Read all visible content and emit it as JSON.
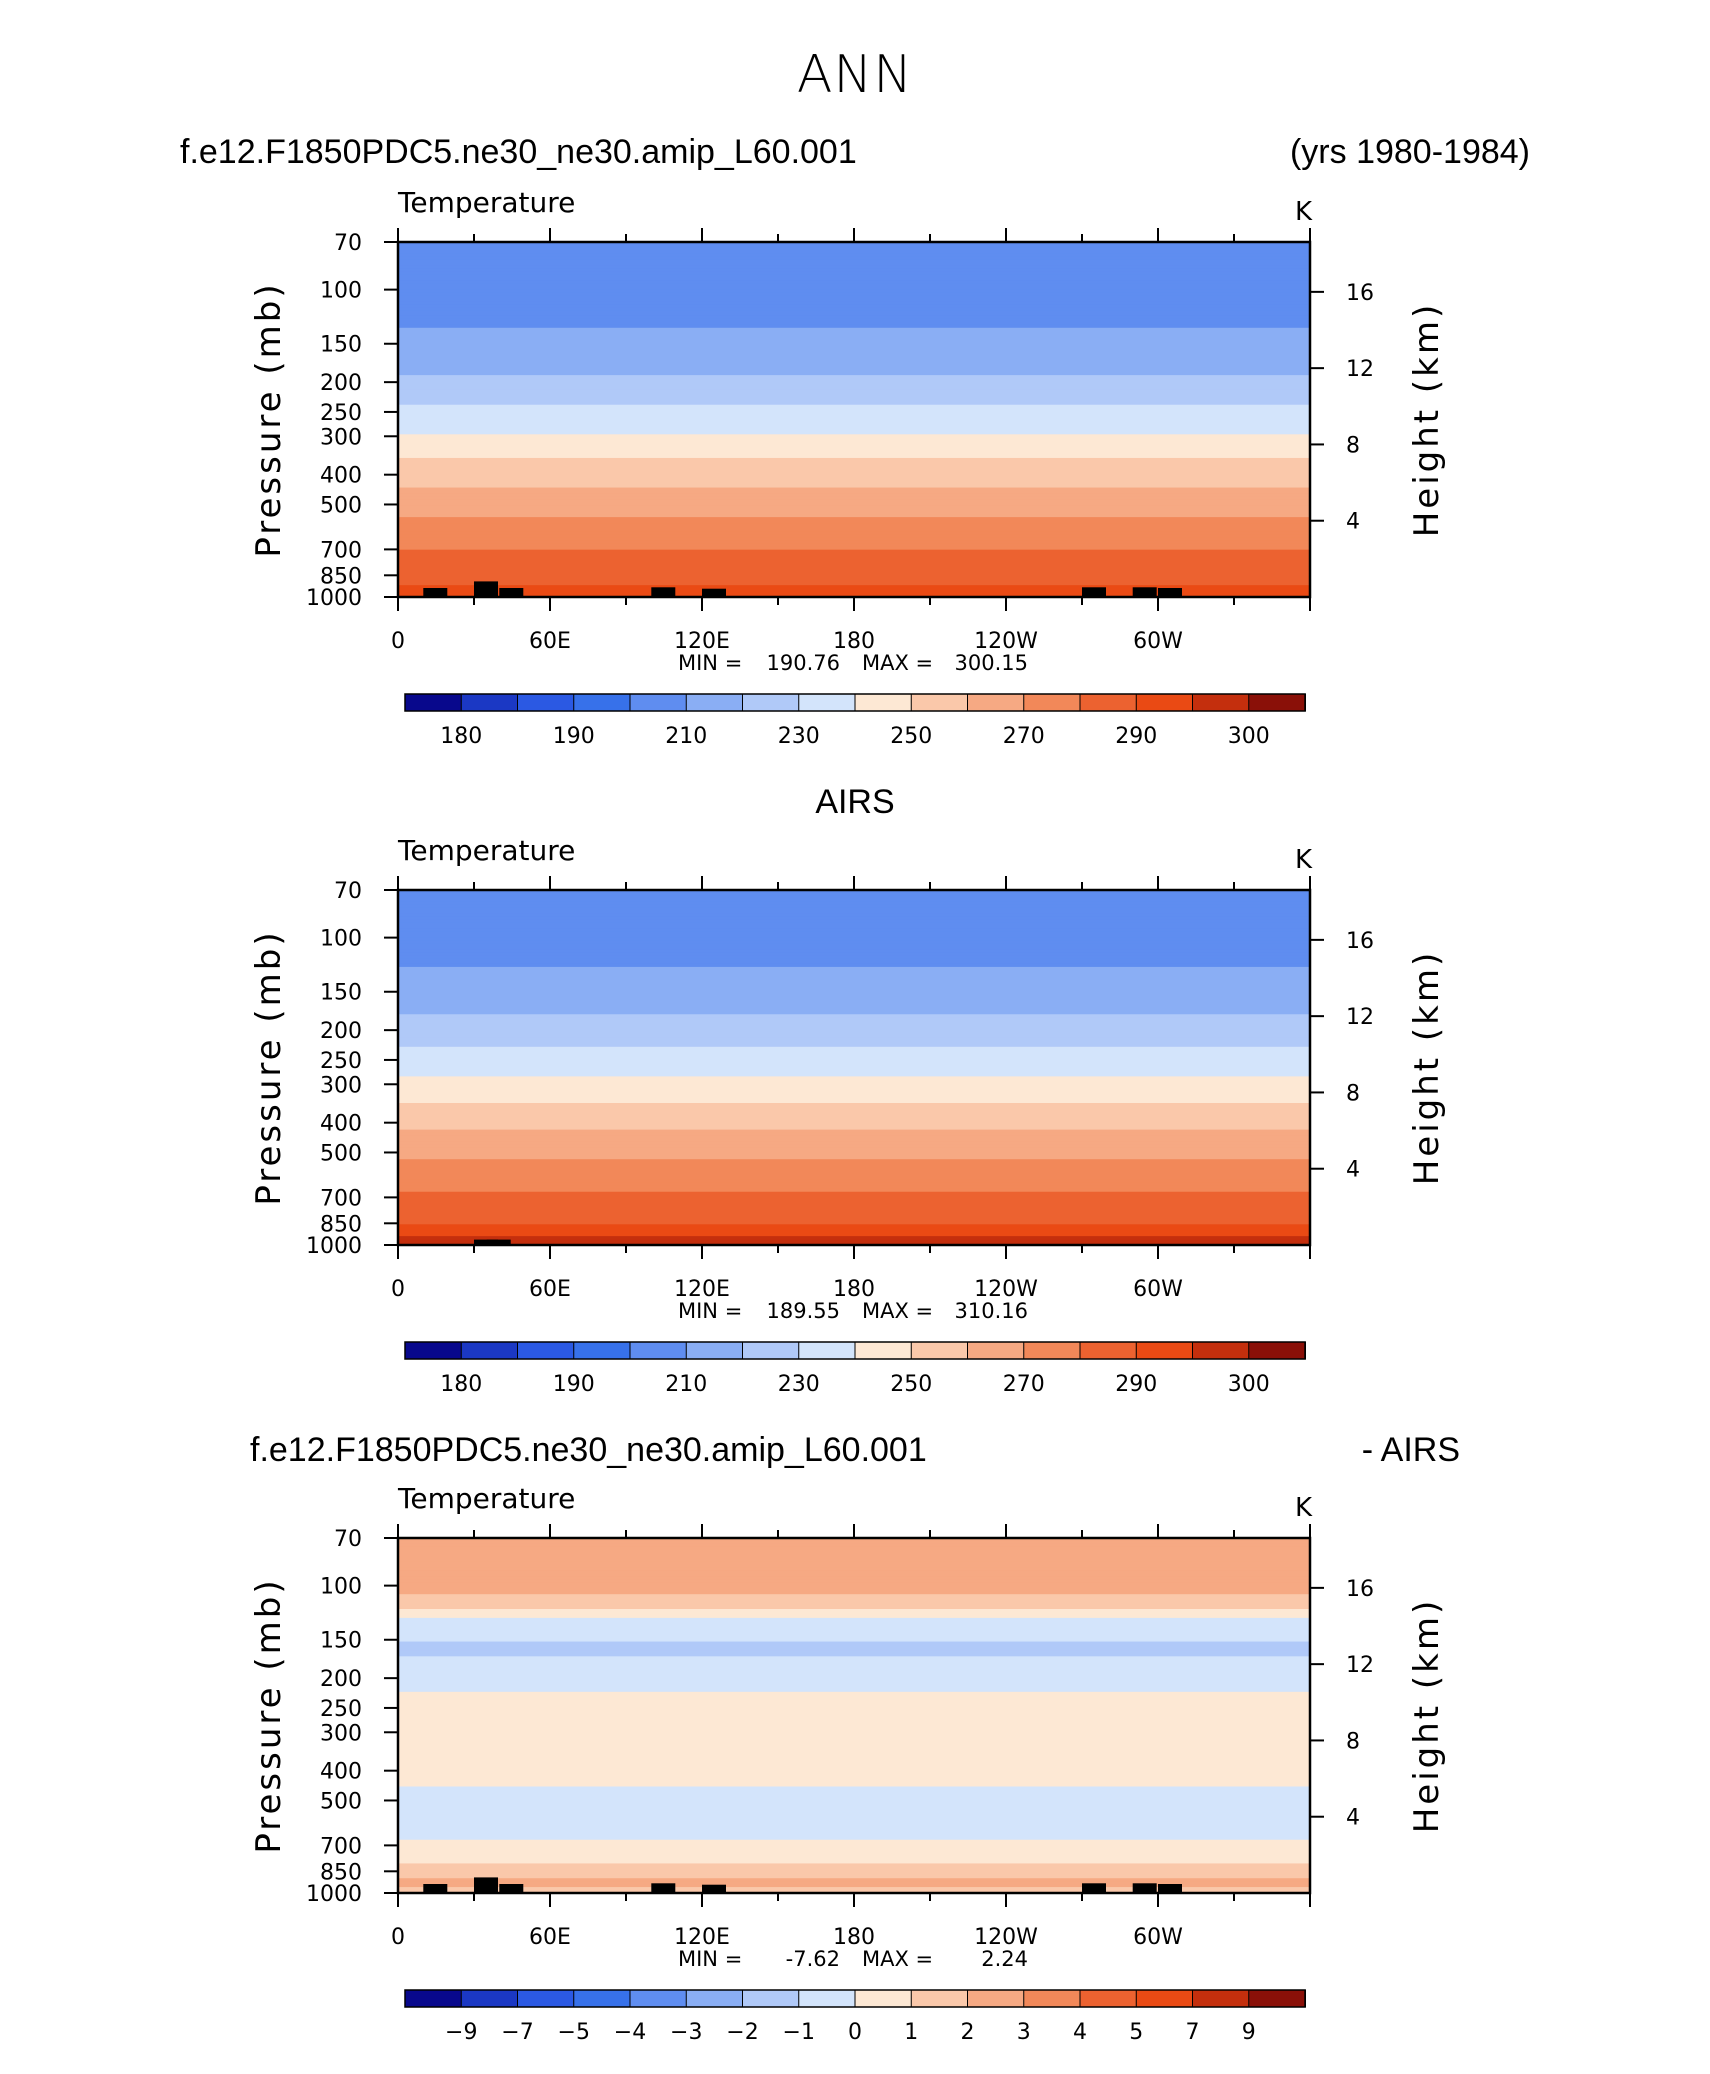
{
  "figure_title": "ANN",
  "top_left_title": "f.e12.F1850PDC5.ne30_ne30.amip_L60.001",
  "top_right_title": "(yrs 1980-1984)",
  "middle_title": "AIRS",
  "bottom_left_title": "f.e12.F1850PDC5.ne30_ne30.amip_L60.001",
  "bottom_right_title": "- AIRS",
  "chart_data": [
    {
      "type": "heatmap",
      "variable_label": "Temperature",
      "units": "K",
      "ylabel": "Pressure (mb)",
      "y2label": "Height (km)",
      "xticks": [
        "0",
        "60E",
        "120E",
        "180",
        "120W",
        "60W"
      ],
      "xtick_values": [
        0,
        60,
        120,
        180,
        240,
        300
      ],
      "xlim": [
        0,
        360
      ],
      "yticks": [
        "70",
        "100",
        "150",
        "200",
        "250",
        "300",
        "400",
        "500",
        "700",
        "850",
        "1000"
      ],
      "ytick_values": [
        70,
        100,
        150,
        200,
        250,
        300,
        400,
        500,
        700,
        850,
        1000
      ],
      "y2ticks": [
        "16",
        "12",
        "8",
        "4"
      ],
      "y2tick_values": [
        16,
        12,
        8,
        4
      ],
      "ylim": [
        70,
        1000
      ],
      "min_label": "MIN =",
      "min_value": "190.76",
      "max_label": "MAX =",
      "max_value": "300.15",
      "levels": [
        180,
        185,
        190,
        200,
        210,
        220,
        230,
        240,
        250,
        260,
        270,
        280,
        290,
        295,
        300
      ],
      "colorbar_labels": [
        "180",
        "190",
        "210",
        "230",
        "250",
        "270",
        "290",
        "300"
      ],
      "colors": [
        "#08088c",
        "#1b38c4",
        "#2b59e3",
        "#3771ea",
        "#5f8df0",
        "#8aaef4",
        "#b0c9f8",
        "#d3e4fb",
        "#fde8d4",
        "#fac8aa",
        "#f6a983",
        "#f28859",
        "#ec6230",
        "#ea4a14",
        "#c42f0d",
        "#8a1008"
      ],
      "profile": [
        {
          "p": 70,
          "t": 205
        },
        {
          "p": 90,
          "t": 205
        },
        {
          "p": 100,
          "t": 205
        },
        {
          "p": 120,
          "t": 208
        },
        {
          "p": 150,
          "t": 212
        },
        {
          "p": 200,
          "t": 222
        },
        {
          "p": 250,
          "t": 232
        },
        {
          "p": 300,
          "t": 241
        },
        {
          "p": 350,
          "t": 249
        },
        {
          "p": 400,
          "t": 256
        },
        {
          "p": 500,
          "t": 266
        },
        {
          "p": 600,
          "t": 274
        },
        {
          "p": 700,
          "t": 280
        },
        {
          "p": 850,
          "t": 287
        },
        {
          "p": 925,
          "t": 290
        },
        {
          "p": 1000,
          "t": 292
        }
      ],
      "terrain": [
        [
          10,
          935
        ],
        [
          30,
          890
        ],
        [
          40,
          935
        ],
        [
          100,
          930
        ],
        [
          120,
          940
        ],
        [
          270,
          930
        ],
        [
          290,
          930
        ],
        [
          300,
          935
        ]
      ]
    },
    {
      "type": "heatmap",
      "variable_label": "Temperature",
      "units": "K",
      "ylabel": "Pressure (mb)",
      "y2label": "Height (km)",
      "xticks": [
        "0",
        "60E",
        "120E",
        "180",
        "120W",
        "60W"
      ],
      "xtick_values": [
        0,
        60,
        120,
        180,
        240,
        300
      ],
      "xlim": [
        0,
        360
      ],
      "yticks": [
        "70",
        "100",
        "150",
        "200",
        "250",
        "300",
        "400",
        "500",
        "700",
        "850",
        "1000"
      ],
      "ytick_values": [
        70,
        100,
        150,
        200,
        250,
        300,
        400,
        500,
        700,
        850,
        1000
      ],
      "y2ticks": [
        "16",
        "12",
        "8",
        "4"
      ],
      "y2tick_values": [
        16,
        12,
        8,
        4
      ],
      "ylim": [
        70,
        1000
      ],
      "min_label": "MIN =",
      "min_value": "189.55",
      "max_label": "MAX =",
      "max_value": "310.16",
      "levels": [
        180,
        185,
        190,
        200,
        210,
        220,
        230,
        240,
        250,
        260,
        270,
        280,
        290,
        295,
        300
      ],
      "colorbar_labels": [
        "180",
        "190",
        "210",
        "230",
        "250",
        "270",
        "290",
        "300"
      ],
      "colors": [
        "#08088c",
        "#1b38c4",
        "#2b59e3",
        "#3771ea",
        "#5f8df0",
        "#8aaef4",
        "#b0c9f8",
        "#d3e4fb",
        "#fde8d4",
        "#fac8aa",
        "#f6a983",
        "#f28859",
        "#ec6230",
        "#ea4a14",
        "#c42f0d",
        "#8a1008"
      ],
      "profile": [
        {
          "p": 70,
          "t": 205
        },
        {
          "p": 90,
          "t": 205
        },
        {
          "p": 100,
          "t": 205
        },
        {
          "p": 120,
          "t": 209
        },
        {
          "p": 150,
          "t": 214
        },
        {
          "p": 200,
          "t": 224
        },
        {
          "p": 250,
          "t": 234
        },
        {
          "p": 300,
          "t": 243
        },
        {
          "p": 350,
          "t": 251
        },
        {
          "p": 400,
          "t": 258
        },
        {
          "p": 500,
          "t": 268
        },
        {
          "p": 600,
          "t": 276
        },
        {
          "p": 700,
          "t": 282
        },
        {
          "p": 850,
          "t": 289
        },
        {
          "p": 925,
          "t": 294
        },
        {
          "p": 1000,
          "t": 298
        }
      ],
      "terrain": [
        [
          30,
          960
        ],
        [
          35,
          960
        ]
      ]
    },
    {
      "type": "heatmap",
      "variable_label": "Temperature",
      "units": "K",
      "ylabel": "Pressure (mb)",
      "y2label": "Height (km)",
      "xticks": [
        "0",
        "60E",
        "120E",
        "180",
        "120W",
        "60W"
      ],
      "xtick_values": [
        0,
        60,
        120,
        180,
        240,
        300
      ],
      "xlim": [
        0,
        360
      ],
      "yticks": [
        "70",
        "100",
        "150",
        "200",
        "250",
        "300",
        "400",
        "500",
        "700",
        "850",
        "1000"
      ],
      "ytick_values": [
        70,
        100,
        150,
        200,
        250,
        300,
        400,
        500,
        700,
        850,
        1000
      ],
      "y2ticks": [
        "16",
        "12",
        "8",
        "4"
      ],
      "y2tick_values": [
        16,
        12,
        8,
        4
      ],
      "ylim": [
        70,
        1000
      ],
      "min_label": "MIN =",
      "min_value": "-7.62",
      "max_label": "MAX =",
      "max_value": "2.24",
      "levels": [
        -9,
        -8,
        -7,
        -6,
        -5,
        -4,
        -3,
        -2,
        -1,
        0,
        1,
        2,
        3,
        4,
        5,
        7,
        9
      ],
      "colorbar_labels": [
        "-9",
        "-7",
        "-5",
        "-4",
        "-3",
        "-2",
        "-1",
        "0",
        "1",
        "2",
        "3",
        "4",
        "5",
        "7",
        "9"
      ],
      "colors": [
        "#08088c",
        "#1b38c4",
        "#2b59e3",
        "#3771ea",
        "#5f8df0",
        "#8aaef4",
        "#b0c9f8",
        "#d3e4fb",
        "#fde8d4",
        "#fac8aa",
        "#f6a983",
        "#f28859",
        "#ec6230",
        "#ea4a14",
        "#c42f0d",
        "#8a1008"
      ],
      "profile": [
        {
          "p": 70,
          "t": 0.5
        },
        {
          "p": 100,
          "t": 0.5
        },
        {
          "p": 115,
          "t": -0.5
        },
        {
          "p": 130,
          "t": -2.5
        },
        {
          "p": 160,
          "t": -3.2
        },
        {
          "p": 200,
          "t": -2.5
        },
        {
          "p": 250,
          "t": -1.5
        },
        {
          "p": 300,
          "t": -1.6
        },
        {
          "p": 400,
          "t": -1.5
        },
        {
          "p": 500,
          "t": -2.4
        },
        {
          "p": 650,
          "t": -2.2
        },
        {
          "p": 750,
          "t": -1.5
        },
        {
          "p": 850,
          "t": -0.5
        },
        {
          "p": 925,
          "t": 0.4
        },
        {
          "p": 1000,
          "t": -0.5
        }
      ],
      "terrain": [
        [
          10,
          935
        ],
        [
          30,
          890
        ],
        [
          40,
          935
        ],
        [
          100,
          930
        ],
        [
          120,
          940
        ],
        [
          270,
          930
        ],
        [
          290,
          930
        ],
        [
          300,
          935
        ]
      ]
    }
  ]
}
